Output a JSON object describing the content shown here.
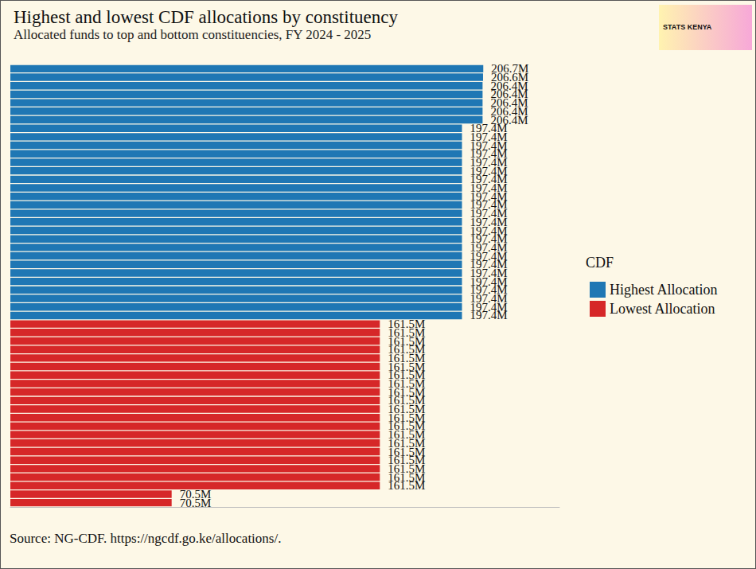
{
  "chart_data": {
    "type": "bar",
    "title": "Highest and lowest CDF allocations by constituency",
    "subtitle": "Allocated funds to top and bottom constituencies, FY 2024 - 2025",
    "source": "Source: NG-CDF. https://ngcdf.go.ke/allocations/.",
    "logo_text": "STATS KENYA",
    "legend_title": "CDF",
    "orientation": "horizontal",
    "data_labels": true,
    "tick_labels": false,
    "grid": false,
    "legend": "right",
    "xlim": [
      0,
      240
    ],
    "categories": [
      null,
      null,
      null,
      null,
      null,
      null,
      null,
      null,
      null,
      null,
      null,
      null,
      null,
      null,
      null,
      null,
      null,
      null,
      null,
      null,
      null,
      null,
      null,
      null,
      null,
      null,
      null,
      null,
      null,
      null,
      null,
      null,
      null,
      null,
      null,
      null,
      null,
      null,
      null,
      null,
      null,
      null,
      null,
      null,
      null,
      null,
      null,
      null,
      null,
      null,
      null,
      null
    ],
    "series": [
      {
        "name": "Highest Allocation",
        "color": "#1f77b4",
        "values": [
          206.7,
          206.6,
          206.4,
          206.4,
          206.4,
          206.4,
          206.4,
          197.4,
          197.4,
          197.4,
          197.4,
          197.4,
          197.4,
          197.4,
          197.4,
          197.4,
          197.4,
          197.4,
          197.4,
          197.4,
          197.4,
          197.4,
          197.4,
          197.4,
          197.4,
          197.4,
          197.4,
          197.4,
          197.4,
          197.4,
          null,
          null,
          null,
          null,
          null,
          null,
          null,
          null,
          null,
          null,
          null,
          null,
          null,
          null,
          null,
          null,
          null,
          null,
          null,
          null,
          null,
          null
        ],
        "value_labels": [
          "206.7M",
          "206.6M",
          "206.4M",
          "206.4M",
          "206.4M",
          "206.4M",
          "206.4M",
          "197.4M",
          "197.4M",
          "197.4M",
          "197.4M",
          "197.4M",
          "197.4M",
          "197.4M",
          "197.4M",
          "197.4M",
          "197.4M",
          "197.4M",
          "197.4M",
          "197.4M",
          "197.4M",
          "197.4M",
          "197.4M",
          "197.4M",
          "197.4M",
          "197.4M",
          "197.4M",
          "197.4M",
          "197.4M",
          "197.4M",
          null,
          null,
          null,
          null,
          null,
          null,
          null,
          null,
          null,
          null,
          null,
          null,
          null,
          null,
          null,
          null,
          null,
          null,
          null,
          null,
          null,
          null
        ]
      },
      {
        "name": "Lowest Allocation",
        "color": "#d62728",
        "values": [
          null,
          null,
          null,
          null,
          null,
          null,
          null,
          null,
          null,
          null,
          null,
          null,
          null,
          null,
          null,
          null,
          null,
          null,
          null,
          null,
          null,
          null,
          null,
          null,
          null,
          null,
          null,
          null,
          null,
          null,
          161.5,
          161.5,
          161.5,
          161.5,
          161.5,
          161.5,
          161.5,
          161.5,
          161.5,
          161.5,
          161.5,
          161.5,
          161.5,
          161.5,
          161.5,
          161.5,
          161.5,
          161.5,
          161.5,
          161.5,
          70.5,
          70.5
        ],
        "value_labels": [
          null,
          null,
          null,
          null,
          null,
          null,
          null,
          null,
          null,
          null,
          null,
          null,
          null,
          null,
          null,
          null,
          null,
          null,
          null,
          null,
          null,
          null,
          null,
          null,
          null,
          null,
          null,
          null,
          null,
          null,
          "161.5M",
          "161.5M",
          "161.5M",
          "161.5M",
          "161.5M",
          "161.5M",
          "161.5M",
          "161.5M",
          "161.5M",
          "161.5M",
          "161.5M",
          "161.5M",
          "161.5M",
          "161.5M",
          "161.5M",
          "161.5M",
          "161.5M",
          "161.5M",
          "161.5M",
          "161.5M",
          "70.5M",
          "70.5M"
        ]
      }
    ]
  }
}
